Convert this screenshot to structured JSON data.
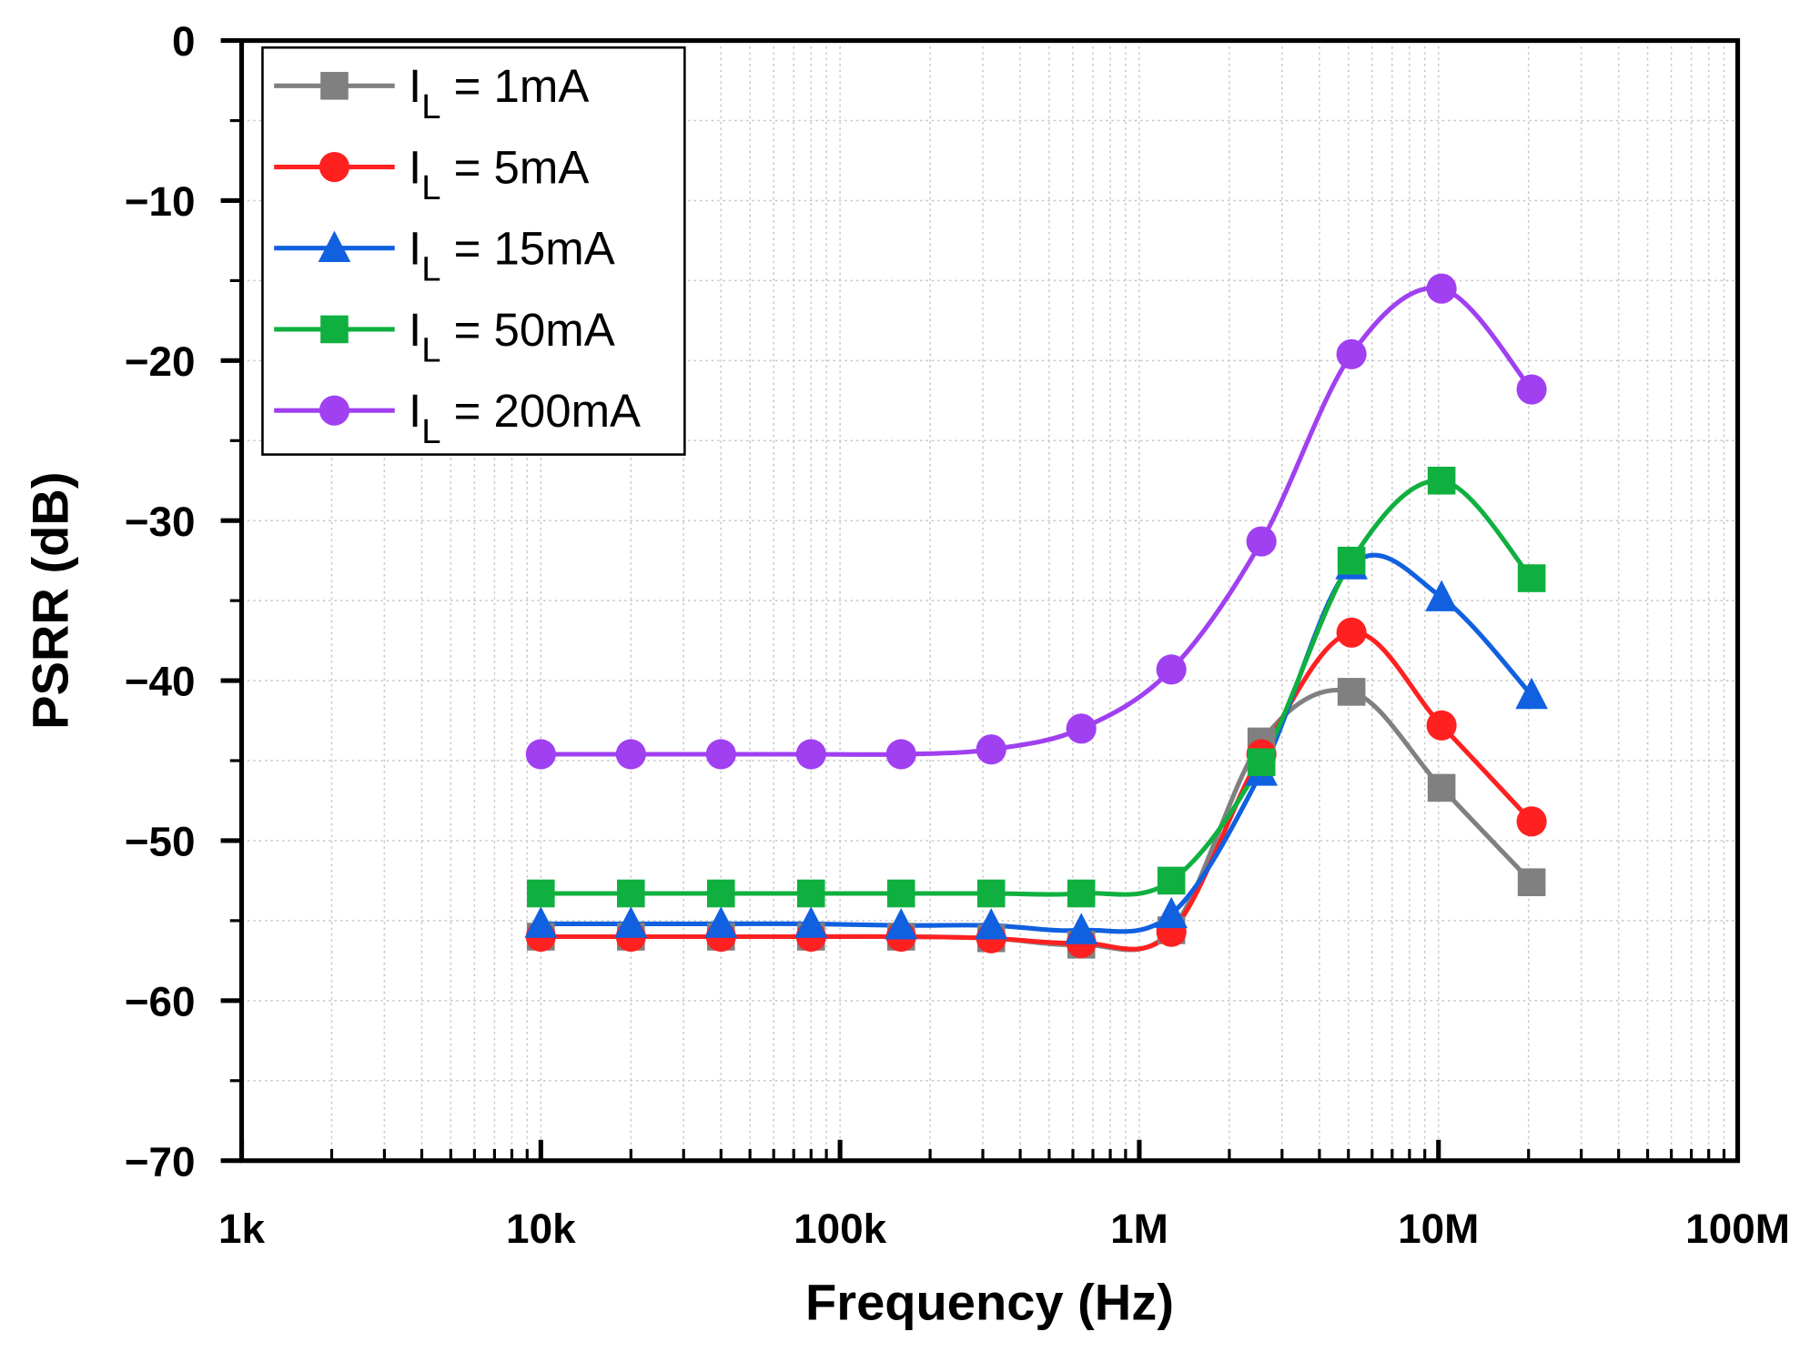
{
  "chart_data": {
    "type": "line",
    "title": "",
    "xlabel": "Frequency (Hz)",
    "ylabel": "PSRR (dB)",
    "xscale": "log",
    "xlim": [
      1000,
      100000000
    ],
    "ylim": [
      -70,
      0
    ],
    "grid": true,
    "legend_position": "top-left",
    "x_tick_labels": [
      {
        "value": 1000,
        "label": "1k"
      },
      {
        "value": 10000,
        "label": "10k"
      },
      {
        "value": 100000,
        "label": "100k"
      },
      {
        "value": 1000000,
        "label": "1M"
      },
      {
        "value": 10000000,
        "label": "10M"
      },
      {
        "value": 100000000,
        "label": "100M"
      }
    ],
    "y_tick_labels": [
      {
        "value": 0,
        "label": "0"
      },
      {
        "value": -10,
        "label": "−10"
      },
      {
        "value": -20,
        "label": "−20"
      },
      {
        "value": -30,
        "label": "−30"
      },
      {
        "value": -40,
        "label": "−40"
      },
      {
        "value": -50,
        "label": "−50"
      },
      {
        "value": -60,
        "label": "−60"
      },
      {
        "value": -70,
        "label": "−70"
      }
    ],
    "x": [
      10000,
      20000,
      40000,
      80000,
      160000,
      320000,
      640000,
      1280000,
      2560000,
      5120000,
      10240000,
      20480000
    ],
    "series": [
      {
        "name": "I_L = 1mA",
        "legend_main": "I",
        "legend_sub": "L",
        "legend_rest": " = 1mA",
        "color": "#808080",
        "marker": "square",
        "values": [
          -56.0,
          -56.0,
          -56.0,
          -56.0,
          -56.0,
          -56.1,
          -56.5,
          -55.6,
          -43.8,
          -40.7,
          -46.7,
          -52.6
        ]
      },
      {
        "name": "I_L = 5mA",
        "legend_main": "I",
        "legend_sub": "L",
        "legend_rest": " = 5mA",
        "color": "#ff2020",
        "marker": "circle",
        "values": [
          -56.0,
          -56.0,
          -56.0,
          -56.0,
          -56.0,
          -56.1,
          -56.4,
          -55.7,
          -44.6,
          -37.0,
          -42.8,
          -48.8
        ]
      },
      {
        "name": "I_L = 15mA",
        "legend_main": "I",
        "legend_sub": "L",
        "legend_rest": " = 15mA",
        "color": "#1060e0",
        "marker": "triangle",
        "values": [
          -55.2,
          -55.2,
          -55.2,
          -55.2,
          -55.3,
          -55.3,
          -55.6,
          -54.6,
          -45.7,
          -32.8,
          -34.8,
          -40.9
        ]
      },
      {
        "name": "I_L = 50mA",
        "legend_main": "I",
        "legend_sub": "L",
        "legend_rest": " = 50mA",
        "color": "#10b040",
        "marker": "square",
        "values": [
          -53.3,
          -53.3,
          -53.3,
          -53.3,
          -53.3,
          -53.3,
          -53.3,
          -52.5,
          -45.1,
          -32.5,
          -27.5,
          -33.6
        ]
      },
      {
        "name": "I_L = 200mA",
        "legend_main": "I",
        "legend_sub": "L",
        "legend_rest": " = 200mA",
        "color": "#a040f0",
        "marker": "circle",
        "values": [
          -44.6,
          -44.6,
          -44.6,
          -44.6,
          -44.6,
          -44.3,
          -43.0,
          -39.3,
          -31.3,
          -19.6,
          -15.5,
          -21.8
        ]
      }
    ]
  }
}
